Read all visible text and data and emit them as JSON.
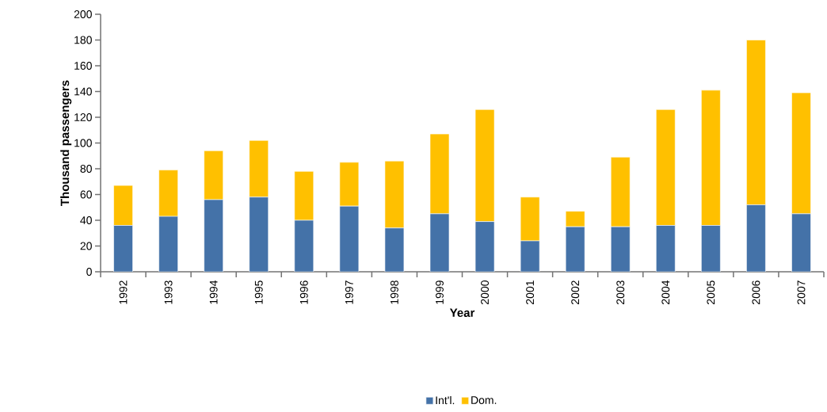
{
  "chart_data": {
    "type": "bar",
    "stacked": true,
    "xlabel": "Year",
    "ylabel": "Thousand passengers",
    "categories": [
      "1992",
      "1993",
      "1994",
      "1995",
      "1996",
      "1997",
      "1998",
      "1999",
      "2000",
      "2001",
      "2002",
      "2003",
      "2004",
      "2005",
      "2006",
      "2007"
    ],
    "series": [
      {
        "name": "Int'l.",
        "color": "#4472a8",
        "values": [
          36,
          43,
          56,
          58,
          40,
          51,
          34,
          45,
          39,
          24,
          35,
          35,
          36,
          36,
          52,
          45
        ]
      },
      {
        "name": "Dom.",
        "color": "#ffc000",
        "values": [
          31,
          36,
          38,
          44,
          38,
          34,
          52,
          62,
          87,
          34,
          12,
          54,
          90,
          105,
          128,
          94
        ]
      }
    ],
    "ylim": [
      0,
      200
    ],
    "yticks": [
      0,
      20,
      40,
      60,
      80,
      100,
      120,
      140,
      160,
      180,
      200
    ],
    "grid": false,
    "legend": "bottom"
  }
}
